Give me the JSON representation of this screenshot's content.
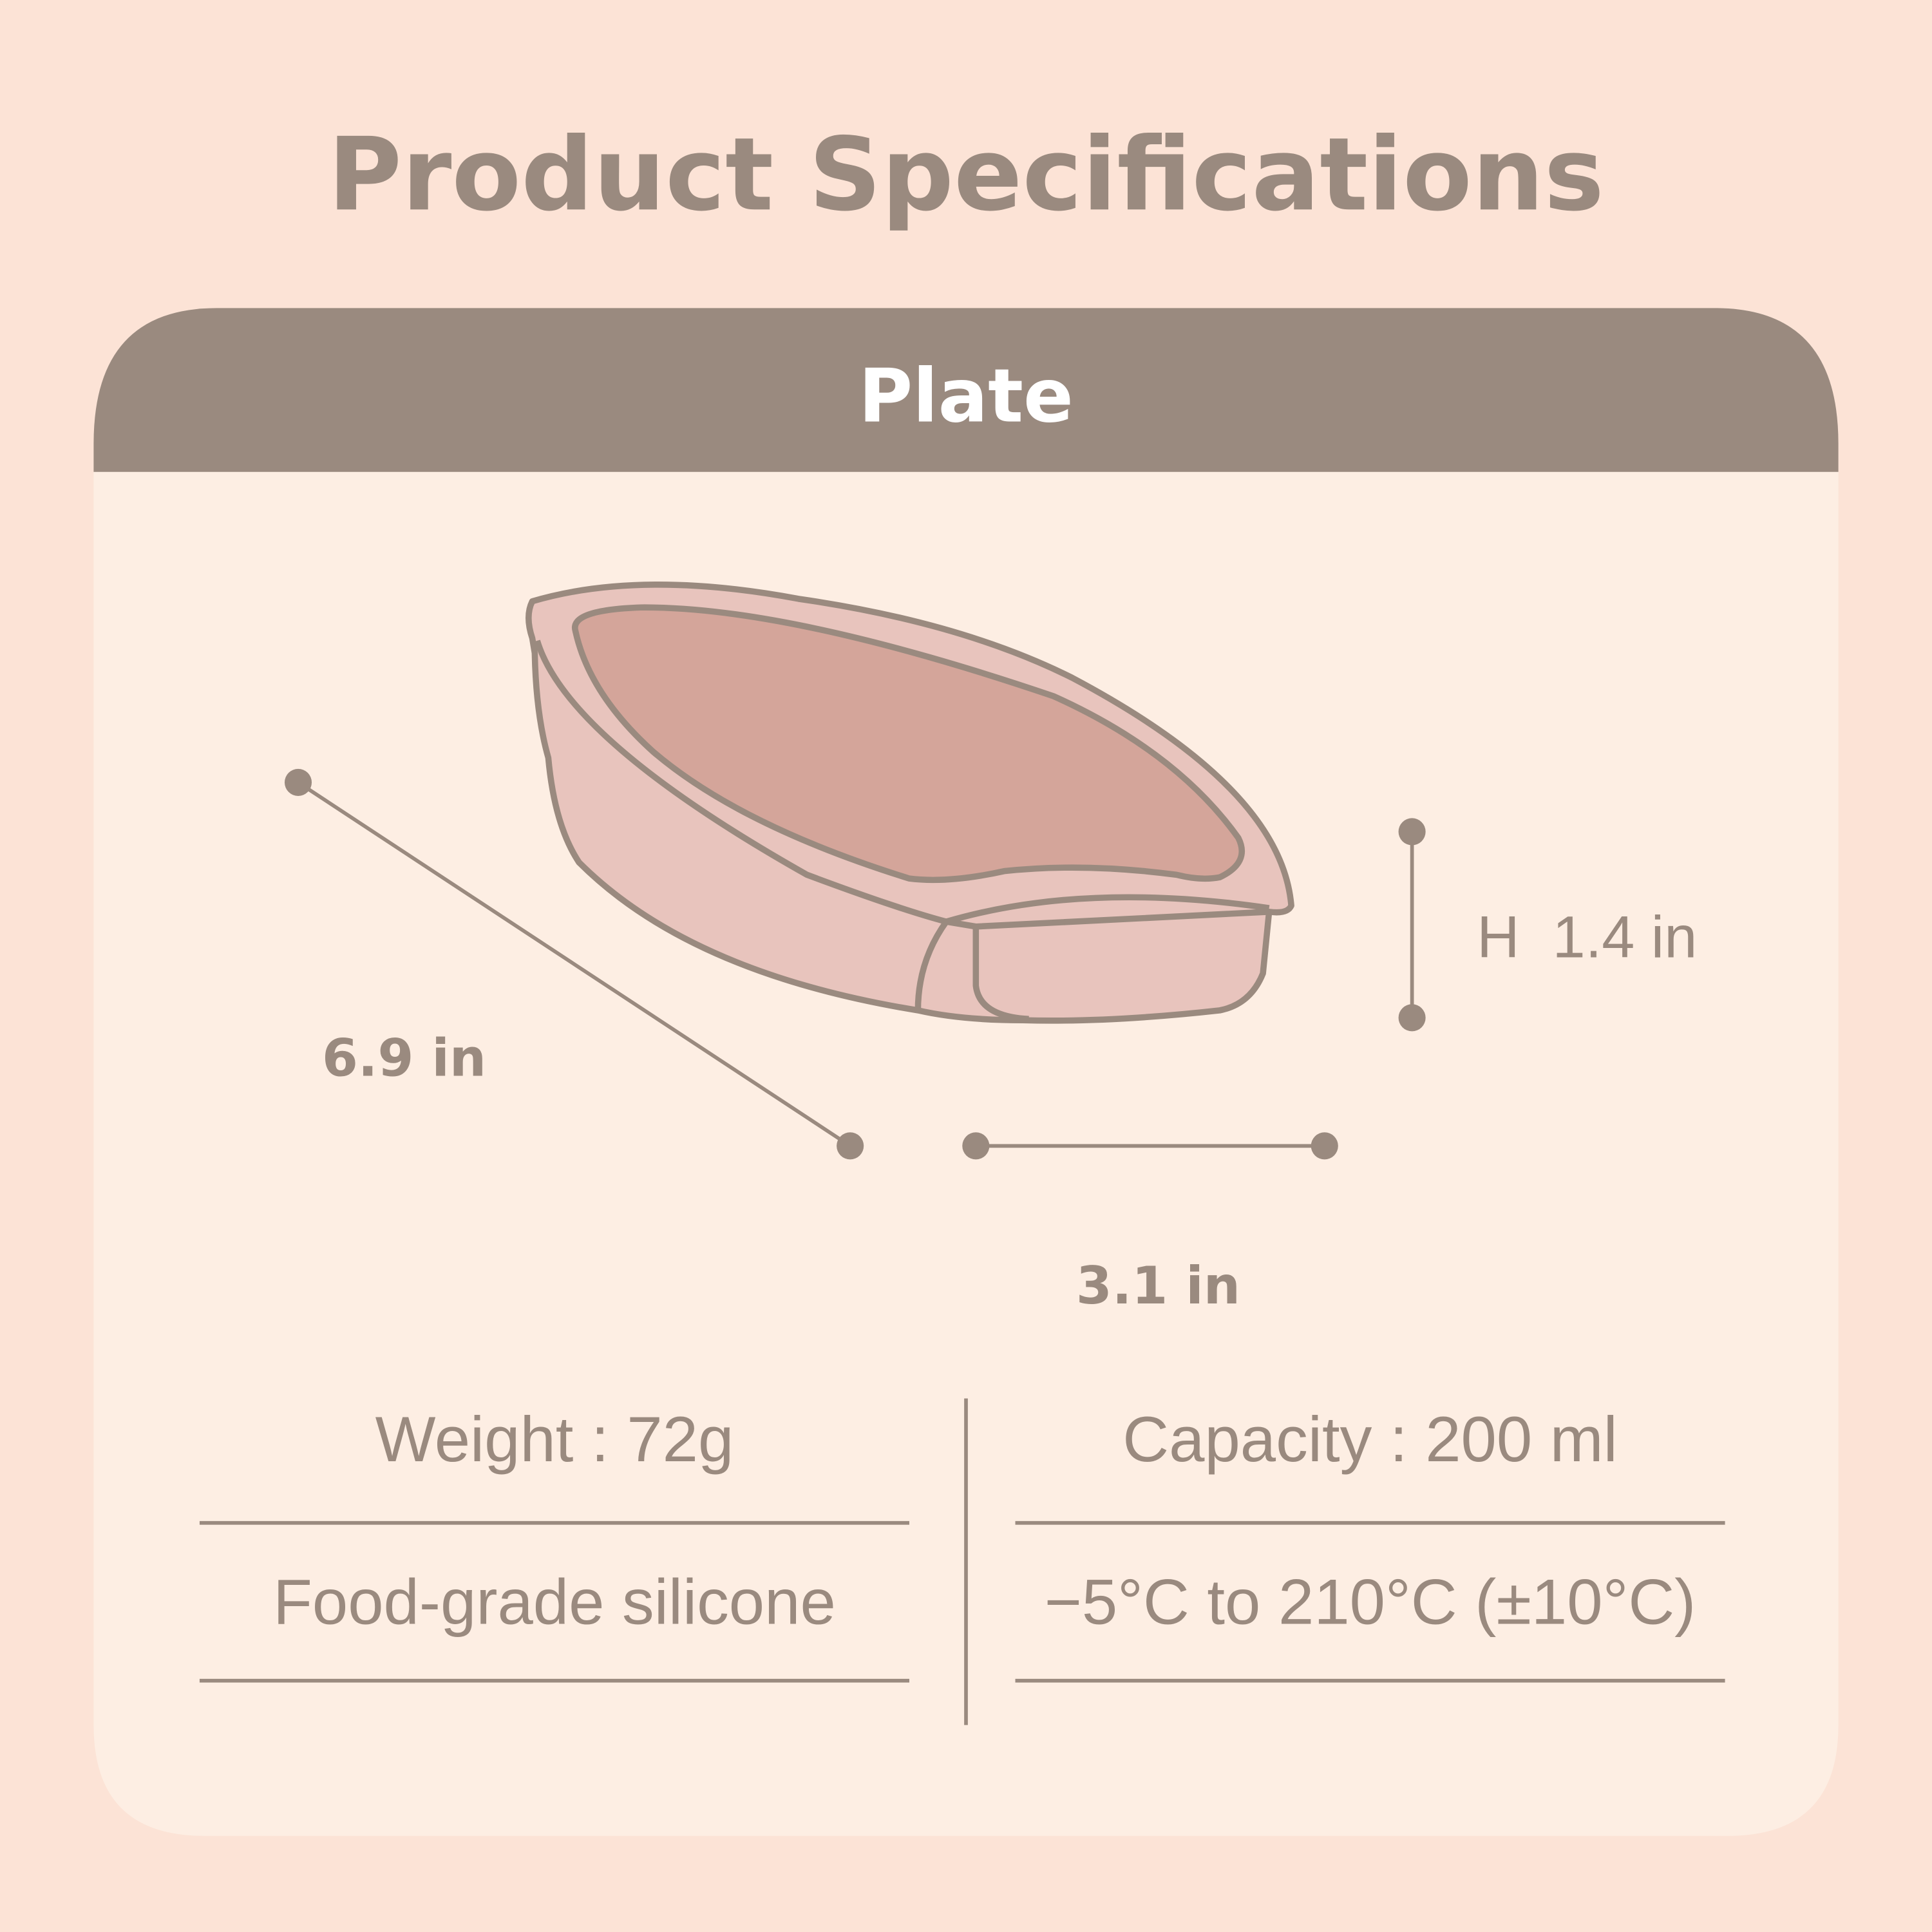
{
  "title": "Product Specifications",
  "section": {
    "title": "Plate"
  },
  "dimensions": {
    "length": "6.9 in",
    "width": "3.1 in",
    "height": "H  1.4 in"
  },
  "specs": {
    "weight": "Weight : 72g",
    "capacity": "Capacity : 200 ml",
    "material": "Food-grade silicone",
    "temperature": "−5°C to 210°C (±10°C)"
  },
  "colors": {
    "background": "#fce3d6",
    "card": "#fdeee3",
    "header": "#9a8a7f",
    "text": "#9a8a7f",
    "plate_fill": "#e8c4bd",
    "plate_inner": "#d4a59a"
  },
  "icons": [
    "plate-illustration"
  ]
}
